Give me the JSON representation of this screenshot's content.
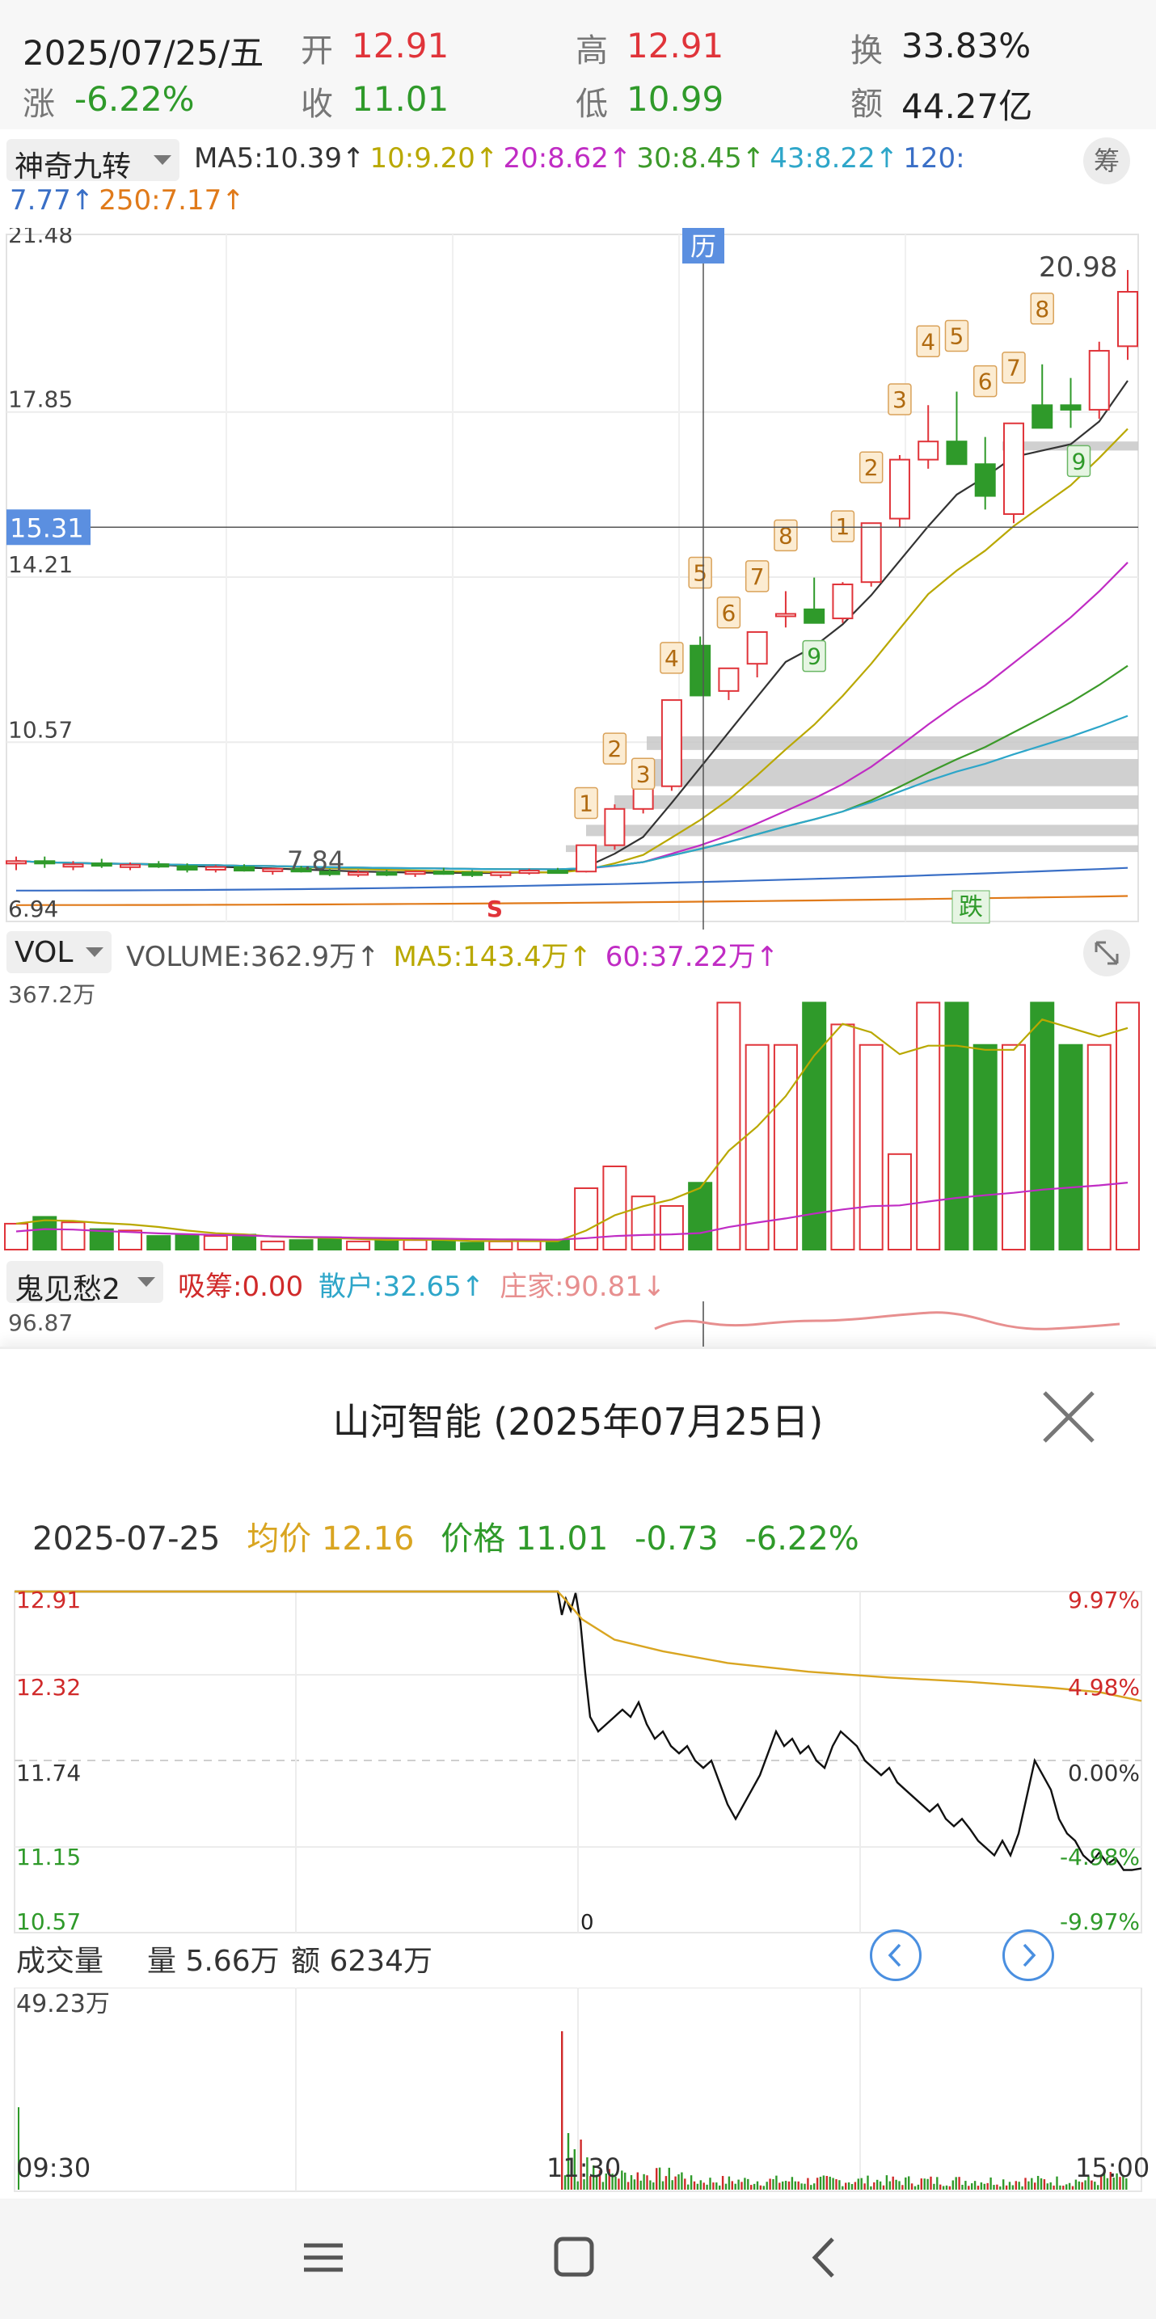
{
  "quote": {
    "date": "2025/07/25/五",
    "open_label": "开",
    "open": "12.91",
    "high_label": "高",
    "high": "12.91",
    "turnover_label": "换",
    "turnover": "33.83%",
    "change_label": "涨",
    "change": "-6.22%",
    "close_label": "收",
    "close": "11.01",
    "low_label": "低",
    "low": "10.99",
    "amount_label": "额",
    "amount": "44.27亿"
  },
  "main_indicator": {
    "name": "神奇九转",
    "ma": [
      {
        "label": "MA5:10.39↑",
        "color": "#333333"
      },
      {
        "label": "10:9.20↑",
        "color": "#b9a800"
      },
      {
        "label": "20:8.62↑",
        "color": "#c02cc4"
      },
      {
        "label": "30:8.45↑",
        "color": "#3c9a2a"
      },
      {
        "label": "43:8.22↑",
        "color": "#2ea6c9"
      },
      {
        "label": "120:",
        "color": "#3a6fc6"
      }
    ],
    "ma_line2": [
      {
        "label": "7.77↑",
        "color": "#3a6fc6"
      },
      {
        "label": "250:7.17↑",
        "color": "#e07a1a"
      }
    ],
    "chip_button": "筹"
  },
  "kline": {
    "price_labels": [
      "21.48",
      "17.85",
      "15.31",
      "14.21",
      "10.57",
      "6.94"
    ],
    "cursor_tag": "历",
    "peak_label": "20.98",
    "low_label": "7.84",
    "sell_mark": "S",
    "fall_mark": "跌",
    "nine_count_labels": [
      "1",
      "2",
      "3",
      "4",
      "5",
      "6",
      "7",
      "8",
      "9",
      "1",
      "2",
      "3",
      "4",
      "5",
      "6",
      "7",
      "8",
      "9"
    ]
  },
  "volume_indicator": {
    "name": "VOL",
    "volume": "VOLUME:362.9万↑",
    "ma5": "MA5:143.4万↑",
    "ma60": "60:37.22万↑",
    "max_label": "367.2万"
  },
  "third_indicator": {
    "name": "鬼见愁2",
    "chip": "吸筹:0.00",
    "retail": "散户:32.65↑",
    "dealer": "庄家:90.81↓",
    "max_label": "96.87"
  },
  "intraday": {
    "title": "山河智能 (2025年07月25日)",
    "date": "2025-07-25",
    "avg_label": "均价",
    "avg": "12.16",
    "price_label": "价格",
    "price": "11.01",
    "change": "-0.73",
    "change_pct": "-6.22%",
    "left_axis": [
      "12.91",
      "12.32",
      "11.74",
      "11.15",
      "10.57"
    ],
    "right_axis": [
      "9.97%",
      "4.98%",
      "0.00%",
      "-4.98%",
      "-9.97%"
    ],
    "zero_mark": "0",
    "volume_title": "成交量",
    "volume_amount": "量 5.66万",
    "turnover_amount": "额 6234万",
    "vol_max": "49.23万",
    "time_start": "09:30",
    "time_mid": "11:30",
    "time_end": "15:00"
  },
  "colors": {
    "up": "#e0343a",
    "down": "#2f9a2a",
    "avg_line": "#d9a521"
  }
}
